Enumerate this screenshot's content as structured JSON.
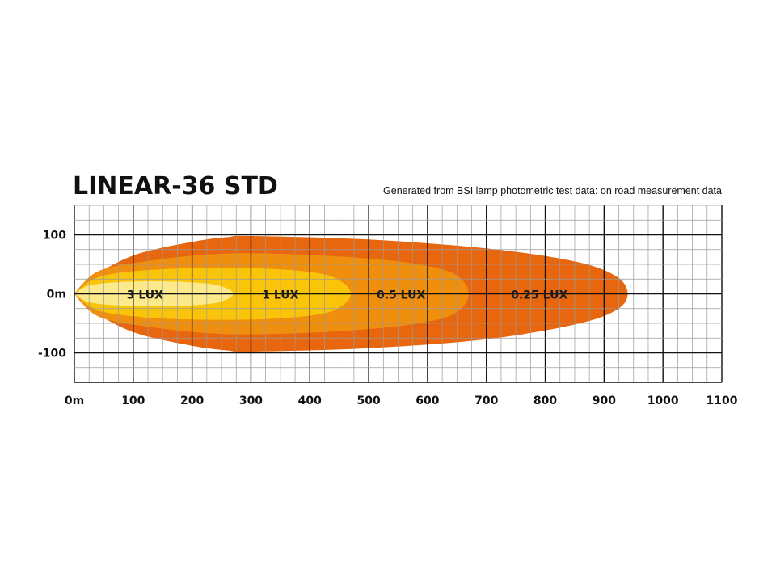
{
  "chart_data": {
    "type": "area",
    "title": "LINEAR-36 STD",
    "subtitle": "Generated from BSI lamp photometric test data: on road measurement data",
    "x": {
      "range": [
        0,
        1100
      ],
      "ticks": [
        0,
        100,
        200,
        300,
        400,
        500,
        600,
        700,
        800,
        900,
        1000,
        1100
      ],
      "tick_labels": [
        "0m",
        "100",
        "200",
        "300",
        "400",
        "500",
        "600",
        "700",
        "800",
        "900",
        "1000",
        "1100"
      ],
      "minor_step": 25
    },
    "y": {
      "range": [
        -150,
        150
      ],
      "ticks": [
        100,
        0,
        -100
      ],
      "tick_labels": [
        "100",
        "0m",
        "-100"
      ],
      "minor_step": 25
    },
    "grid": true,
    "zones": [
      {
        "label": "0.25 LUX",
        "reach": 940,
        "max_width": 100,
        "color": "#E8660D",
        "upper": [
          [
            0,
            0
          ],
          [
            25,
            25
          ],
          [
            100,
            65
          ],
          [
            200,
            88
          ],
          [
            260,
            96
          ],
          [
            300,
            98
          ],
          [
            500,
            92
          ],
          [
            700,
            77
          ],
          [
            850,
            55
          ],
          [
            920,
            30
          ],
          [
            940,
            0
          ]
        ],
        "lower": [
          [
            0,
            0
          ],
          [
            25,
            -25
          ],
          [
            100,
            -65
          ],
          [
            200,
            -88
          ],
          [
            260,
            -96
          ],
          [
            300,
            -98
          ],
          [
            500,
            -92
          ],
          [
            700,
            -77
          ],
          [
            850,
            -52
          ],
          [
            920,
            -28
          ],
          [
            940,
            0
          ]
        ]
      },
      {
        "label": "0.5 LUX",
        "reach": 670,
        "max_width": 70,
        "color": "#F08E0D",
        "upper": [
          [
            0,
            0
          ],
          [
            40,
            38
          ],
          [
            120,
            55
          ],
          [
            250,
            68
          ],
          [
            400,
            66
          ],
          [
            550,
            55
          ],
          [
            630,
            40
          ],
          [
            660,
            22
          ],
          [
            670,
            0
          ]
        ],
        "lower": [
          [
            0,
            0
          ],
          [
            40,
            -38
          ],
          [
            120,
            -55
          ],
          [
            250,
            -68
          ],
          [
            400,
            -66
          ],
          [
            550,
            -55
          ],
          [
            630,
            -40
          ],
          [
            660,
            -22
          ],
          [
            670,
            0
          ]
        ]
      },
      {
        "label": "1 LUX",
        "reach": 470,
        "max_width": 45,
        "color": "#F9C40A",
        "upper": [
          [
            0,
            0
          ],
          [
            40,
            28
          ],
          [
            120,
            40
          ],
          [
            230,
            44
          ],
          [
            340,
            42
          ],
          [
            420,
            34
          ],
          [
            455,
            20
          ],
          [
            470,
            0
          ]
        ],
        "lower": [
          [
            0,
            0
          ],
          [
            40,
            -28
          ],
          [
            120,
            -40
          ],
          [
            230,
            -44
          ],
          [
            340,
            -42
          ],
          [
            420,
            -34
          ],
          [
            455,
            -20
          ],
          [
            470,
            0
          ]
        ]
      },
      {
        "label": "3 LUX",
        "reach": 270,
        "max_width": 22,
        "color": "#FBE98A",
        "upper": [
          [
            0,
            0
          ],
          [
            25,
            14
          ],
          [
            80,
            20
          ],
          [
            160,
            21
          ],
          [
            230,
            17
          ],
          [
            260,
            9
          ],
          [
            270,
            0
          ]
        ],
        "lower": [
          [
            0,
            0
          ],
          [
            25,
            -14
          ],
          [
            80,
            -20
          ],
          [
            160,
            -21
          ],
          [
            230,
            -17
          ],
          [
            260,
            -9
          ],
          [
            270,
            0
          ]
        ]
      }
    ],
    "labels": [
      {
        "text": "3 LUX",
        "x": 120,
        "y": 0
      },
      {
        "text": "1 LUX",
        "x": 350,
        "y": 0
      },
      {
        "text": "0.5 LUX",
        "x": 555,
        "y": 0
      },
      {
        "text": "0.25 LUX",
        "x": 790,
        "y": 0
      }
    ]
  }
}
